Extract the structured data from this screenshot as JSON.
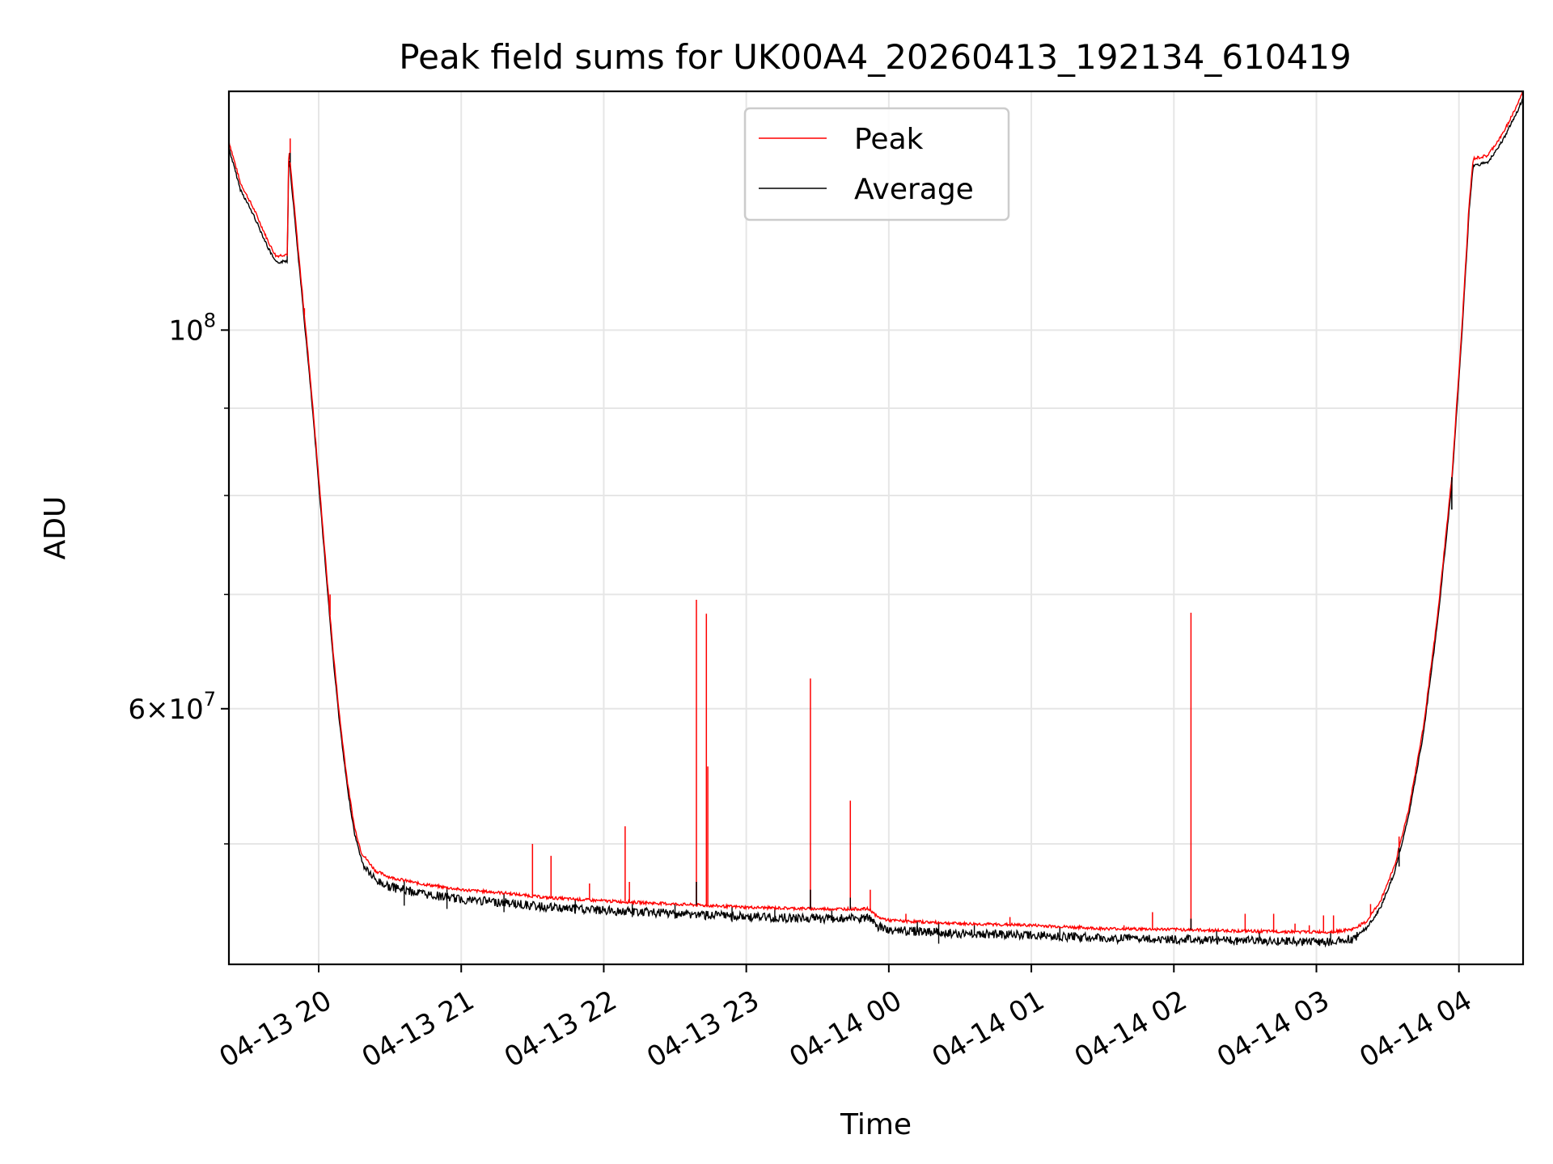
{
  "chart_data": {
    "type": "line",
    "title": "Peak field sums for UK00A4_20260413_192134_610419",
    "xlabel": "Time",
    "ylabel": "ADU",
    "yscale": "log",
    "grid": true,
    "legend_position": "top-center",
    "xlim_hours": [
      -0.63,
      8.45
    ],
    "ylim": [
      42500000,
      138000000
    ],
    "x_unit": "hours since 04-13 20:00",
    "x_ticks": [
      {
        "value": 0,
        "label": "04-13 20"
      },
      {
        "value": 1,
        "label": "04-13 21"
      },
      {
        "value": 2,
        "label": "04-13 22"
      },
      {
        "value": 3,
        "label": "04-13 23"
      },
      {
        "value": 4,
        "label": "04-14 00"
      },
      {
        "value": 5,
        "label": "04-14 01"
      },
      {
        "value": 6,
        "label": "04-14 02"
      },
      {
        "value": 7,
        "label": "04-14 03"
      },
      {
        "value": 8,
        "label": "04-14 04"
      }
    ],
    "y_ticks_major": [
      {
        "value": 100000000,
        "base": "10",
        "exp": "8"
      },
      {
        "value": 60000000,
        "coef": "6",
        "base": "10",
        "exp": "7"
      }
    ],
    "y_ticks_minor": [
      50000000,
      70000000,
      80000000,
      90000000
    ],
    "series": [
      {
        "name": "Peak",
        "color": "#ff0000",
        "points": [
          [
            -0.63,
            129000000
          ],
          [
            -0.55,
            122000000
          ],
          [
            -0.45,
            117500000
          ],
          [
            -0.35,
            112500000
          ],
          [
            -0.3,
            110500000
          ],
          [
            -0.22,
            110800000
          ],
          [
            -0.21,
            128000000
          ],
          [
            -0.15,
            113000000
          ],
          [
            -0.1,
            102000000
          ],
          [
            -0.05,
            92000000
          ],
          [
            0.0,
            82000000
          ],
          [
            0.05,
            73000000
          ],
          [
            0.1,
            65000000
          ],
          [
            0.15,
            59000000
          ],
          [
            0.2,
            54500000
          ],
          [
            0.25,
            51200000
          ],
          [
            0.3,
            49400000
          ],
          [
            0.4,
            48200000
          ],
          [
            0.5,
            47800000
          ],
          [
            0.7,
            47400000
          ],
          [
            1.0,
            47000000
          ],
          [
            1.3,
            46800000
          ],
          [
            1.6,
            46500000
          ],
          [
            2.0,
            46300000
          ],
          [
            2.5,
            46100000
          ],
          [
            3.0,
            45900000
          ],
          [
            3.5,
            45800000
          ],
          [
            3.85,
            45800000
          ],
          [
            3.87,
            45750000
          ],
          [
            3.92,
            45300000
          ],
          [
            4.0,
            45100000
          ],
          [
            4.5,
            44900000
          ],
          [
            5.0,
            44800000
          ],
          [
            5.5,
            44600000
          ],
          [
            6.0,
            44550000
          ],
          [
            6.5,
            44450000
          ],
          [
            6.9,
            44400000
          ],
          [
            7.1,
            44400000
          ],
          [
            7.25,
            44550000
          ],
          [
            7.35,
            45000000
          ],
          [
            7.45,
            46300000
          ],
          [
            7.55,
            48600000
          ],
          [
            7.65,
            52500000
          ],
          [
            7.75,
            58500000
          ],
          [
            7.85,
            68000000
          ],
          [
            7.95,
            82000000
          ],
          [
            8.02,
            100000000
          ],
          [
            8.07,
            118000000
          ],
          [
            8.1,
            126000000
          ],
          [
            8.2,
            126500000
          ],
          [
            8.3,
            130000000
          ],
          [
            8.4,
            135000000
          ],
          [
            8.45,
            138000000
          ]
        ],
        "spikes": [
          [
            -0.2,
            129500000
          ],
          [
            -0.1,
            103000000
          ],
          [
            0.08,
            70000000
          ],
          [
            1.5,
            50000000
          ],
          [
            1.63,
            49200000
          ],
          [
            1.9,
            47400000
          ],
          [
            2.15,
            51200000
          ],
          [
            2.18,
            47500000
          ],
          [
            2.65,
            69500000
          ],
          [
            2.72,
            68200000
          ],
          [
            2.73,
            55500000
          ],
          [
            3.45,
            62500000
          ],
          [
            3.73,
            53000000
          ],
          [
            3.87,
            47000000
          ],
          [
            4.12,
            45500000
          ],
          [
            4.5,
            45000000
          ],
          [
            4.85,
            45300000
          ],
          [
            5.65,
            44800000
          ],
          [
            5.85,
            45600000
          ],
          [
            6.12,
            68300000
          ],
          [
            6.5,
            45500000
          ],
          [
            6.7,
            45500000
          ],
          [
            6.85,
            44900000
          ],
          [
            6.95,
            44800000
          ],
          [
            7.05,
            45400000
          ],
          [
            7.12,
            45400000
          ],
          [
            7.38,
            46100000
          ],
          [
            7.58,
            50500000
          ],
          [
            7.95,
            80500000
          ]
        ]
      },
      {
        "name": "Average",
        "color": "#000000",
        "offset_ratio": 0.993,
        "dips": [
          [
            0.6,
            46000000
          ],
          [
            0.9,
            45800000
          ],
          [
            1.3,
            45600000
          ],
          [
            1.8,
            45500000
          ],
          [
            2.2,
            45300000
          ],
          [
            2.5,
            45200000
          ],
          [
            2.9,
            45000000
          ],
          [
            3.2,
            45100000
          ],
          [
            3.6,
            45300000
          ],
          [
            4.2,
            44400000
          ],
          [
            4.35,
            43700000
          ],
          [
            4.6,
            44200000
          ],
          [
            5.2,
            44100000
          ],
          [
            6.3,
            43900000
          ],
          [
            6.6,
            44000000
          ],
          [
            7.1,
            43800000
          ]
        ],
        "spikes": [
          [
            -0.2,
            127000000
          ],
          [
            2.65,
            47500000
          ],
          [
            3.45,
            47000000
          ],
          [
            3.73,
            46500000
          ],
          [
            6.12,
            45200000
          ],
          [
            7.58,
            48500000
          ],
          [
            7.95,
            78500000
          ]
        ]
      }
    ]
  }
}
